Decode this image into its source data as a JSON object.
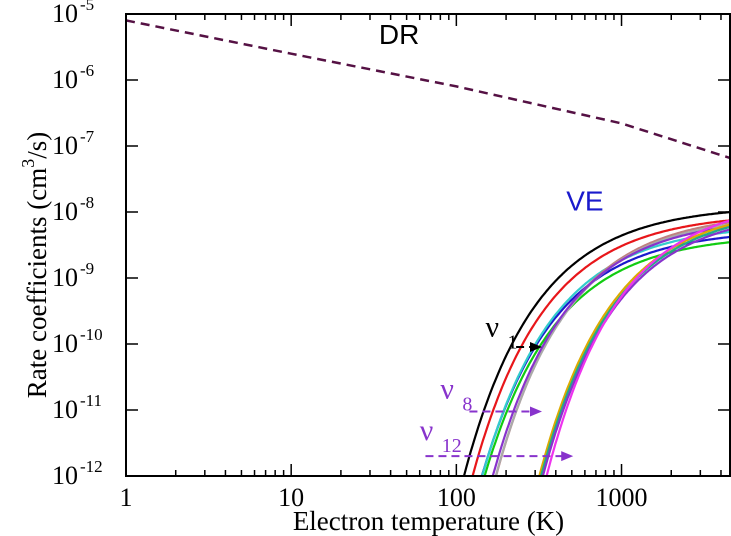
{
  "chart_data": {
    "type": "line",
    "xlabel": "Electron temperature (K)",
    "ylabel_main": "Rate coefficients (cm",
    "ylabel_sup": "3",
    "ylabel_end": "/s)",
    "xscale": "log",
    "yscale": "log",
    "xlim": [
      1,
      4600
    ],
    "ylim": [
      1e-12,
      1e-05
    ],
    "xticks": [
      {
        "value": 1,
        "label": "1"
      },
      {
        "value": 10,
        "label": "10"
      },
      {
        "value": 100,
        "label": "100"
      },
      {
        "value": 1000,
        "label": "1000"
      }
    ],
    "yticks": [
      {
        "value": -12,
        "base": "10",
        "exp": "-12"
      },
      {
        "value": -11,
        "base": "10",
        "exp": "-11"
      },
      {
        "value": -10,
        "base": "10",
        "exp": "-10"
      },
      {
        "value": -9,
        "base": "10",
        "exp": "-9"
      },
      {
        "value": -8,
        "base": "10",
        "exp": "-8"
      },
      {
        "value": -7,
        "base": "10",
        "exp": "-7"
      },
      {
        "value": -6,
        "base": "10",
        "exp": "-6"
      },
      {
        "value": -5,
        "base": "10",
        "exp": "-5"
      }
    ],
    "annotations": [
      {
        "text": "DR",
        "color": "#000000",
        "x": 45,
        "y": 3.5e-06
      },
      {
        "text": "VE",
        "color": "#1a1acc",
        "x": 600,
        "y": 1.05e-08
      }
    ],
    "nu_labels": [
      {
        "sym": "ν",
        "sub": "1",
        "color": "#000000",
        "x": 150,
        "y": 1.3e-10,
        "arrow_from": 230,
        "arrow_to": 330,
        "arrow_y": 9e-11
      },
      {
        "sym": "ν",
        "sub": "8",
        "color": "#8833cc",
        "x": 80,
        "y": 1.5e-11,
        "arrow_from": 120,
        "arrow_to": 330,
        "arrow_y": 9.5e-12
      },
      {
        "sym": "ν",
        "sub": "12",
        "color": "#8833cc",
        "x": 60,
        "y": 3.5e-12,
        "arrow_from": 65,
        "arrow_to": 510,
        "arrow_y": 2e-12
      }
    ],
    "dr_series": {
      "name": "DR",
      "color": "#551144",
      "dashed": true,
      "points": [
        [
          1,
          8e-06
        ],
        [
          10,
          2.5e-06
        ],
        [
          100,
          8e-07
        ],
        [
          1000,
          2.2e-07
        ],
        [
          4600,
          6.5e-08
        ]
      ]
    },
    "ve_series": [
      {
        "color": "#000000",
        "Ea": 1050,
        "max": 1e-08
      },
      {
        "color": "#e8161a",
        "Ea": 1150,
        "max": 7.5e-09
      },
      {
        "color": "#11cc11",
        "Ea": 1250,
        "max": 3.5e-09
      },
      {
        "color": "#1a1acc",
        "Ea": 1230,
        "max": 4.2e-09
      },
      {
        "color": "#33cccc",
        "Ea": 1260,
        "max": 5e-09
      },
      {
        "color": "#c08080",
        "Ea": 1600,
        "max": 7e-09
      },
      {
        "color": "#aaaaaa",
        "Ea": 1580,
        "max": 6.5e-09
      },
      {
        "color": "#8833cc",
        "Ea": 1500,
        "max": 6e-09
      },
      {
        "color": "#ddaa00",
        "Ea": 3000,
        "max": 6.5e-09
      },
      {
        "color": "#22aa88",
        "Ea": 3050,
        "max": 6e-09
      },
      {
        "color": "#8833cc",
        "Ea": 3100,
        "max": 5.5e-09
      },
      {
        "color": "#ee33ee",
        "Ea": 3400,
        "max": 7.5e-09
      }
    ]
  }
}
